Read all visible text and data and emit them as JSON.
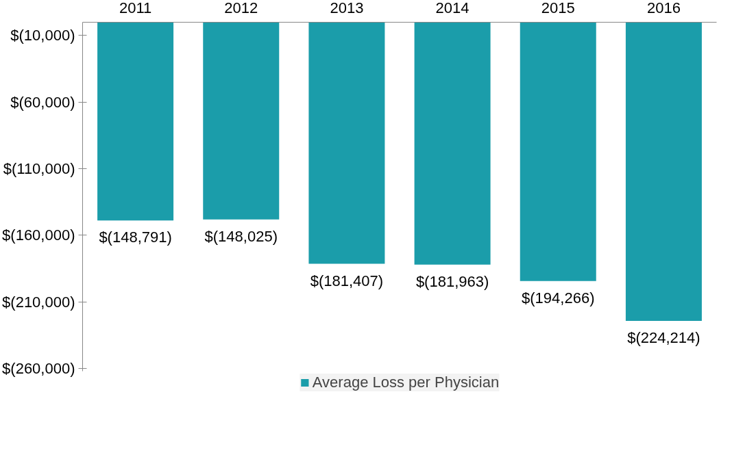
{
  "chart_data": {
    "type": "bar",
    "categories": [
      "2011",
      "2012",
      "2013",
      "2014",
      "2015",
      "2016"
    ],
    "series": [
      {
        "name": "Average Loss per Physician",
        "color": "#1b9daa",
        "values": [
          -148791,
          -148025,
          -181407,
          -181963,
          -194266,
          -224214
        ],
        "value_labels": [
          "$(148,791)",
          "$(148,025)",
          "$(181,407)",
          "$(181,963)",
          "$(194,266)",
          "$(224,214)"
        ]
      }
    ],
    "ylim": [
      -262000,
      0
    ],
    "yticks": [
      {
        "value": -10000,
        "label": "$(10,000)"
      },
      {
        "value": -60000,
        "label": "$(60,000)"
      },
      {
        "value": -110000,
        "label": "$(110,000)"
      },
      {
        "value": -160000,
        "label": "$(160,000)"
      },
      {
        "value": -210000,
        "label": "$(210,000)"
      },
      {
        "value": -260000,
        "label": "$(260,000)"
      }
    ],
    "grid": false,
    "legend": "bottom"
  }
}
